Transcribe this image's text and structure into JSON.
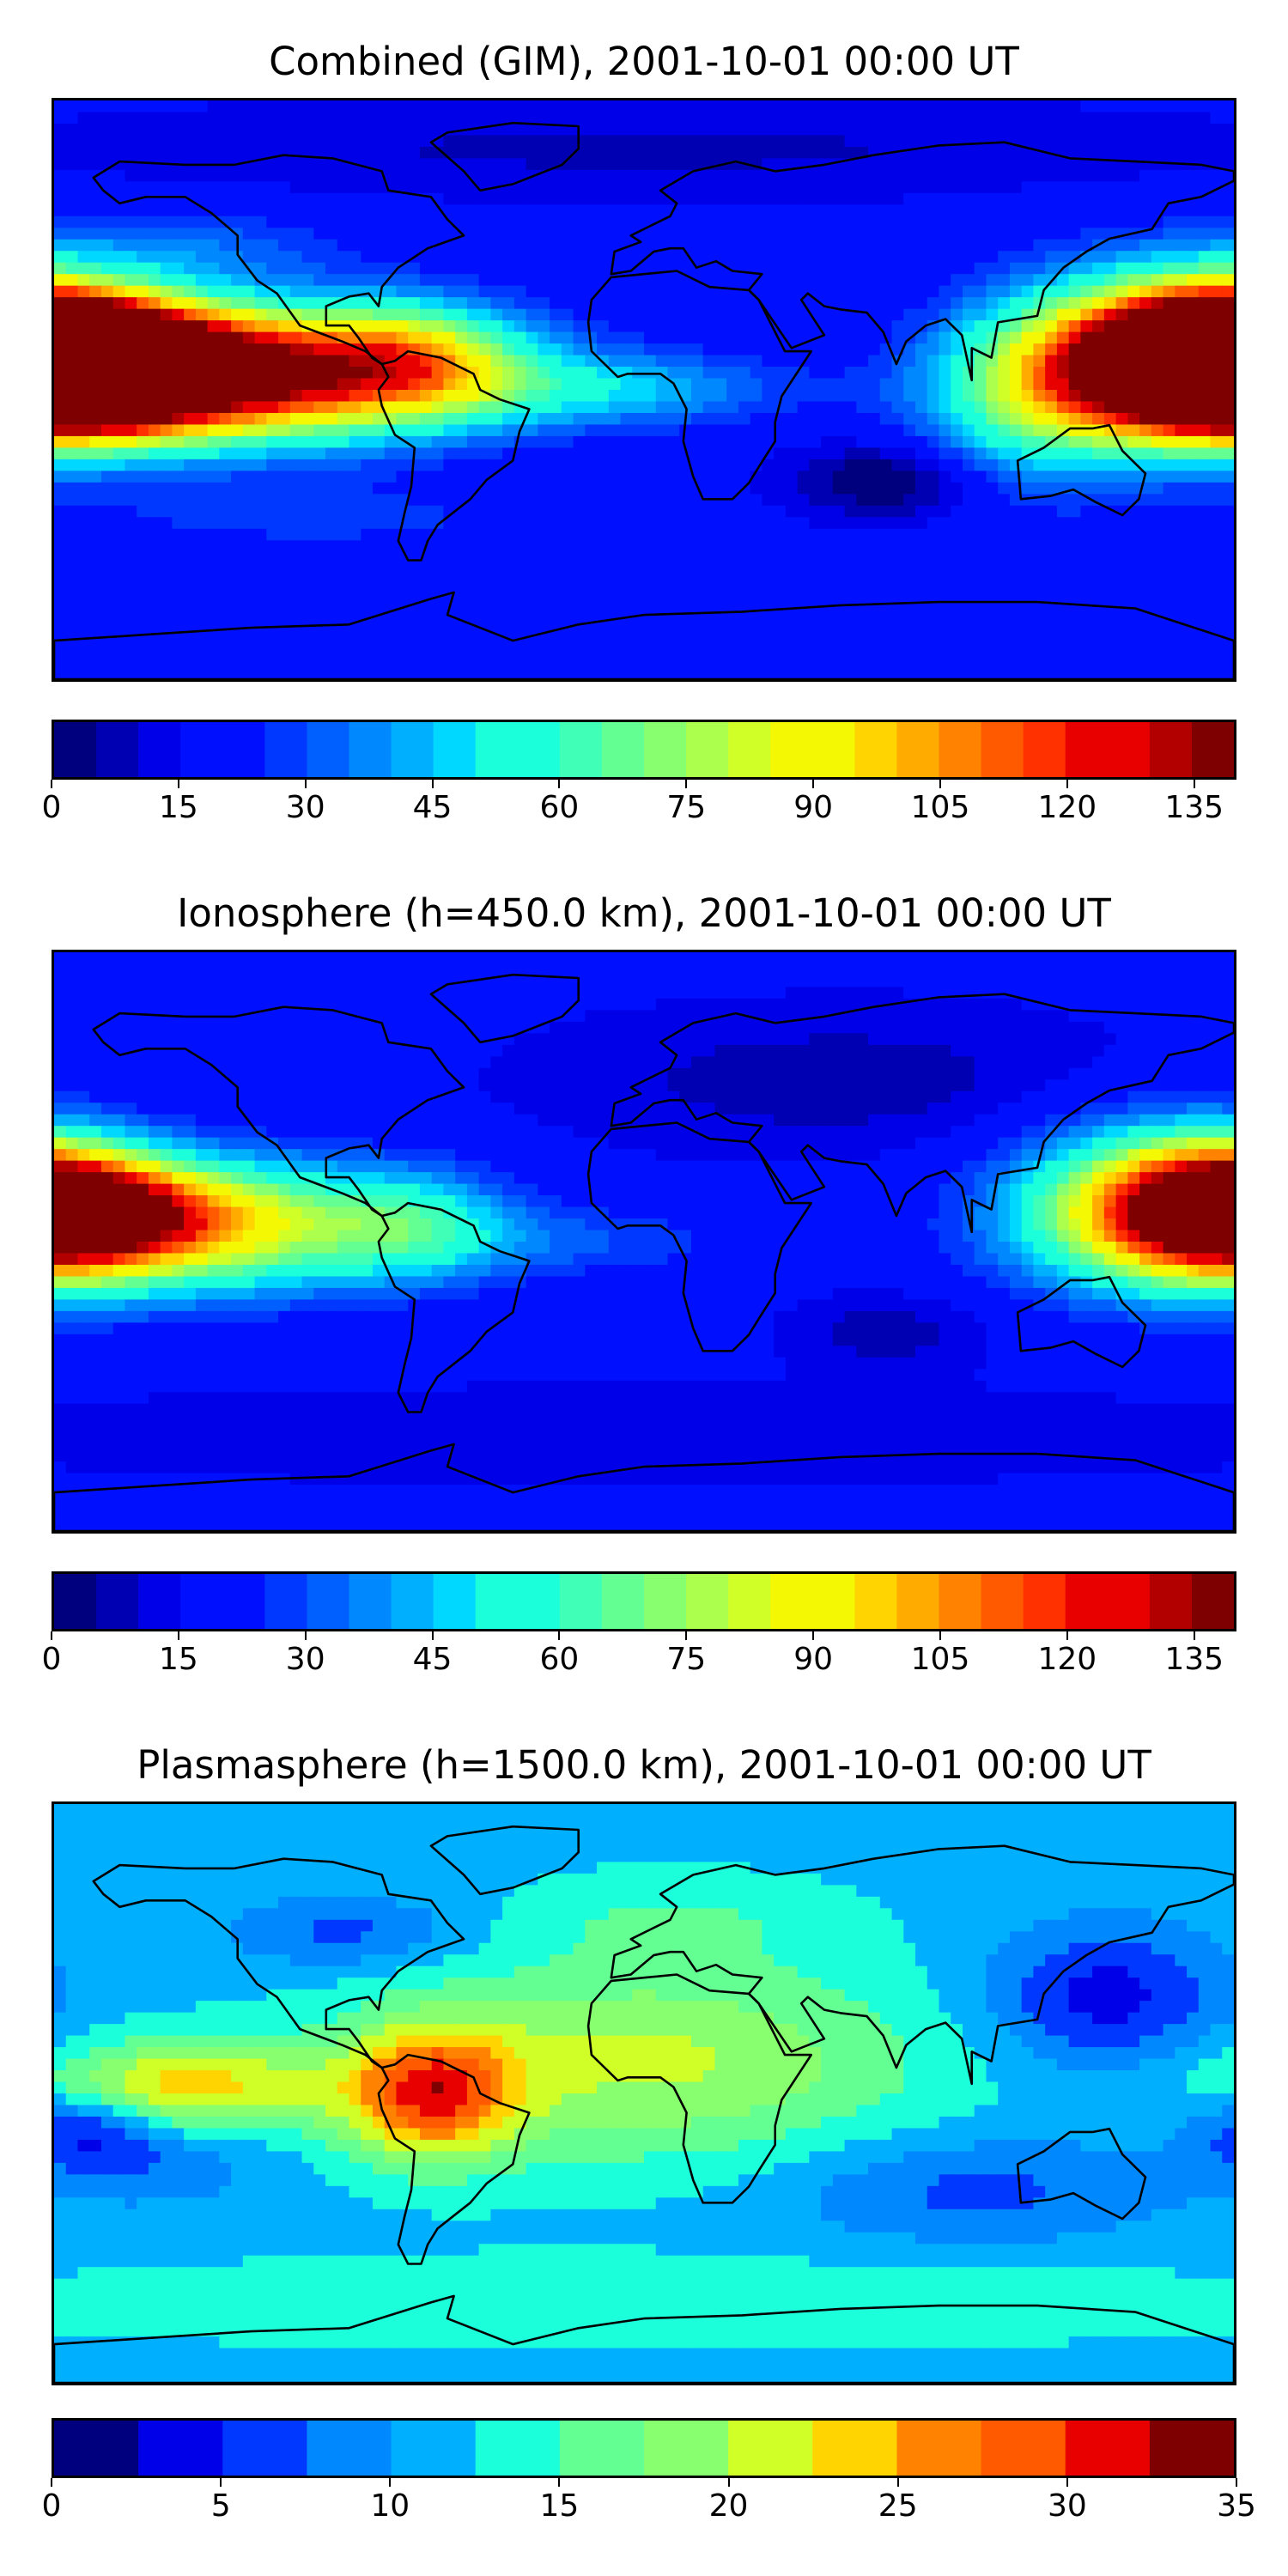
{
  "panels": [
    {
      "title": "Combined (GIM), 2001-10-01 00:00 UT",
      "colorbar": {
        "min": 0,
        "max": 140,
        "step": 5,
        "ticks": [
          0,
          15,
          30,
          45,
          60,
          75,
          90,
          105,
          120,
          135
        ]
      },
      "features": [
        {
          "lon": -135,
          "lat": 5,
          "sx": 55,
          "sy": 14,
          "v": 128
        },
        {
          "lon": -170,
          "lat": 8,
          "sx": 30,
          "sy": 14,
          "v": 95
        },
        {
          "lon": 178,
          "lat": 10,
          "sx": 22,
          "sy": 14,
          "v": 110
        },
        {
          "lon": 150,
          "lat": 12,
          "sx": 30,
          "sy": 18,
          "v": 60
        },
        {
          "lon": 120,
          "lat": -5,
          "sx": 25,
          "sy": 18,
          "v": 35
        },
        {
          "lon": -70,
          "lat": 10,
          "sx": 22,
          "sy": 12,
          "v": 40
        },
        {
          "lon": -10,
          "lat": 0,
          "sx": 40,
          "sy": 8,
          "v": 25
        },
        {
          "lon": -140,
          "lat": 45,
          "sx": 35,
          "sy": 8,
          "v": 15
        },
        {
          "lon": -100,
          "lat": -40,
          "sx": 60,
          "sy": 8,
          "v": 10
        },
        {
          "lon": 75,
          "lat": -28,
          "sx": 20,
          "sy": 8,
          "v": -20
        },
        {
          "lon": 0,
          "lat": 75,
          "sx": 120,
          "sy": 10,
          "v": -8
        }
      ]
    },
    {
      "title": "Ionosphere  (h=450.0 km), 2001-10-01 00:00 UT",
      "colorbar": {
        "min": 0,
        "max": 140,
        "step": 5,
        "ticks": [
          0,
          15,
          30,
          45,
          60,
          75,
          90,
          105,
          120,
          135
        ]
      },
      "features": [
        {
          "lon": -150,
          "lat": 5,
          "sx": 50,
          "sy": 14,
          "v": 85
        },
        {
          "lon": -160,
          "lat": 10,
          "sx": 25,
          "sy": 10,
          "v": 25
        },
        {
          "lon": 178,
          "lat": 12,
          "sx": 22,
          "sy": 14,
          "v": 85
        },
        {
          "lon": 150,
          "lat": 12,
          "sx": 28,
          "sy": 18,
          "v": 45
        },
        {
          "lon": -70,
          "lat": 5,
          "sx": 20,
          "sy": 12,
          "v": 25
        },
        {
          "lon": -20,
          "lat": 0,
          "sx": 40,
          "sy": 8,
          "v": 12
        },
        {
          "lon": 60,
          "lat": 50,
          "sx": 60,
          "sy": 15,
          "v": -10
        },
        {
          "lon": 75,
          "lat": -28,
          "sx": 20,
          "sy": 8,
          "v": -10
        },
        {
          "lon": 0,
          "lat": -60,
          "sx": 150,
          "sy": 10,
          "v": -6
        }
      ]
    },
    {
      "title": "Plasmasphere (h=1500.0 km), 2001-10-01 00:00 UT",
      "colorbar": {
        "min": 0,
        "max": 35,
        "step": 2.5,
        "ticks": [
          0,
          5,
          10,
          15,
          20,
          25,
          30,
          35
        ]
      },
      "features": [
        {
          "lon": -65,
          "lat": 0,
          "sx": 18,
          "sy": 14,
          "v": 16
        },
        {
          "lon": -140,
          "lat": 2,
          "sx": 30,
          "sy": 10,
          "v": 12
        },
        {
          "lon": 0,
          "lat": 10,
          "sx": 60,
          "sy": 22,
          "v": 9
        },
        {
          "lon": -150,
          "lat": -20,
          "sx": 25,
          "sy": 10,
          "v": -4
        },
        {
          "lon": 140,
          "lat": 30,
          "sx": 25,
          "sy": 15,
          "v": -8
        },
        {
          "lon": 100,
          "lat": -30,
          "sx": 40,
          "sy": 12,
          "v": -5
        },
        {
          "lon": -170,
          "lat": -10,
          "sx": 15,
          "sy": 8,
          "v": -7
        },
        {
          "lon": -90,
          "lat": 50,
          "sx": 25,
          "sy": 8,
          "v": -5
        },
        {
          "lon": 10,
          "lat": 55,
          "sx": 35,
          "sy": 10,
          "v": 3
        },
        {
          "lon": 0,
          "lat": -65,
          "sx": 150,
          "sy": 10,
          "v": 3
        }
      ]
    }
  ]
}
